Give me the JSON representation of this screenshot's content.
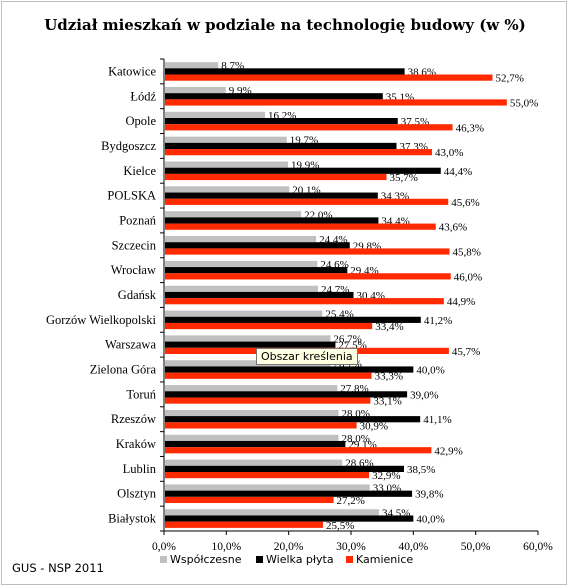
{
  "chart_data": {
    "type": "bar",
    "orientation": "horizontal",
    "title": "Udział mieszkań w podziale na technologię budowy (w %)",
    "categories": [
      "Katowice",
      "Łódź",
      "Opole",
      "Bydgoszcz",
      "Kielce",
      "POLSKA",
      "Poznań",
      "Szczecin",
      "Wrocław",
      "Gdańsk",
      "Gorzów Wielkopolski",
      "Warszawa",
      "Zielona Góra",
      "Toruń",
      "Rzeszów",
      "Kraków",
      "Lublin",
      "Olsztyn",
      "Białystok"
    ],
    "series": [
      {
        "name": "Współczesne",
        "color": "#c0c0c0",
        "values": [
          8.7,
          9.9,
          16.2,
          19.7,
          19.9,
          20.1,
          22.0,
          24.4,
          24.6,
          24.7,
          25.4,
          26.7,
          26.7,
          27.8,
          28.0,
          28.0,
          28.6,
          33.0,
          34.5
        ],
        "labels": [
          "8,7%",
          "9,9%",
          "16,2%",
          "19,7%",
          "19,9%",
          "20,1%",
          "22,0%",
          "24,4%",
          "24,6%",
          "24,7%",
          "25,4%",
          "26,7%",
          "26,7%",
          "27,8%",
          "28,0%",
          "28,0%",
          "28,6%",
          "33,0%",
          "34,5%"
        ]
      },
      {
        "name": "Wielka płyta",
        "color": "#000000",
        "values": [
          38.6,
          35.1,
          37.5,
          37.3,
          44.4,
          34.3,
          34.4,
          29.8,
          29.4,
          30.4,
          41.2,
          27.5,
          40.0,
          39.0,
          41.1,
          29.1,
          38.5,
          39.8,
          40.0
        ],
        "labels": [
          "38,6%",
          "35,1%",
          "37,5%",
          "37,3%",
          "44,4%",
          "34,3%",
          "34,4%",
          "29,8%",
          "29,4%",
          "30,4%",
          "41,2%",
          "27,5%",
          "40,0%",
          "39,0%",
          "41,1%",
          "29,1%",
          "38,5%",
          "39,8%",
          "40,0%"
        ]
      },
      {
        "name": "Kamienice",
        "color": "#ff2a00",
        "values": [
          52.7,
          55.0,
          46.3,
          43.0,
          35.7,
          45.6,
          43.6,
          45.8,
          46.0,
          44.9,
          33.4,
          45.7,
          33.3,
          33.1,
          30.9,
          42.9,
          32.9,
          27.2,
          25.5
        ],
        "labels": [
          "52,7%",
          "55,0%",
          "46,3%",
          "43,0%",
          "35,7%",
          "45,6%",
          "43,6%",
          "45,8%",
          "46,0%",
          "44,9%",
          "33,4%",
          "45,7%",
          "33,3%",
          "33,1%",
          "30,9%",
          "42,9%",
          "32,9%",
          "27,2%",
          "25,5%"
        ]
      }
    ],
    "xlim": [
      0,
      60
    ],
    "xticks": [
      "0,0%",
      "10,0%",
      "20,0%",
      "30,0%",
      "40,0%",
      "50,0%",
      "60,0%"
    ],
    "legend_position": "bottom",
    "grid": false
  },
  "source_note": "GUS - NSP 2011",
  "tooltip": "Obszar kreślenia"
}
